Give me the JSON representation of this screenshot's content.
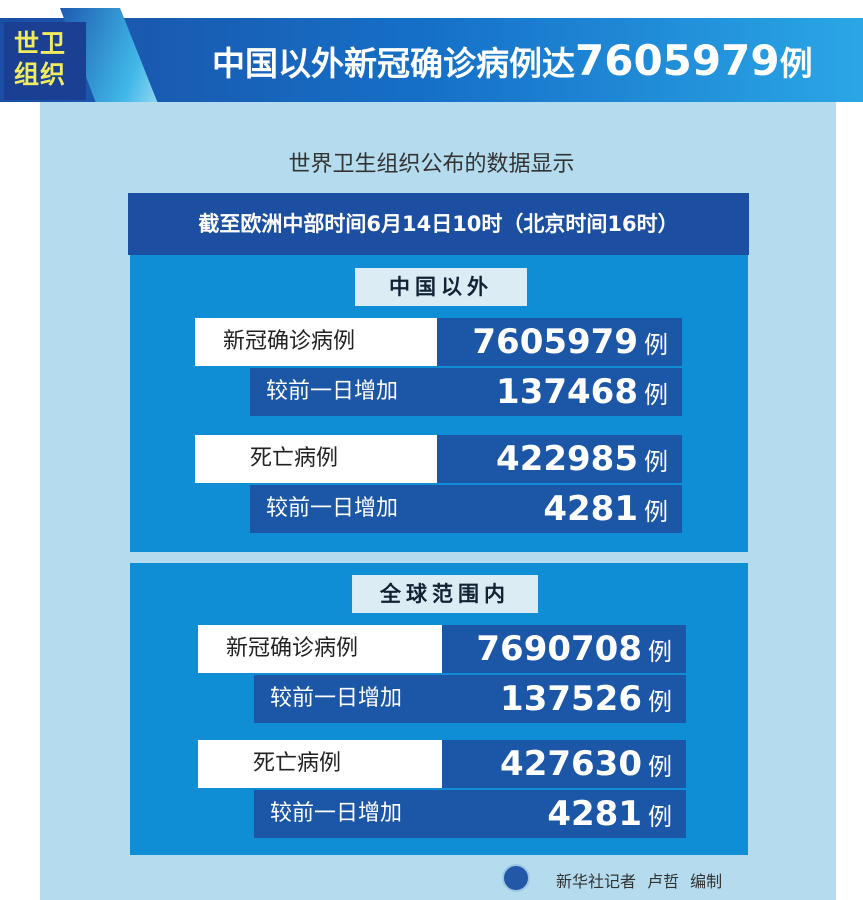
{
  "header": {
    "badge": [
      "世卫",
      "组织"
    ],
    "title_prefix": "中国以外新冠确诊病例达",
    "title_number": "7605979",
    "title_suffix": "例"
  },
  "subtitle": "世界卫生组织公布的数据显示",
  "date_line": "截至欧洲中部时间6月14日10时（北京时间16时）",
  "sections": [
    {
      "title": "中国以外",
      "rows": [
        {
          "label": "新冠确诊病例",
          "value": "7605979",
          "unit": "例"
        },
        {
          "label": "较前一日增加",
          "value": "137468",
          "unit": "例"
        },
        {
          "label": "死亡病例",
          "value": "422985",
          "unit": "例"
        },
        {
          "label": "较前一日增加",
          "value": "4281",
          "unit": "例"
        }
      ]
    },
    {
      "title": "全球范围内",
      "rows": [
        {
          "label": "新冠确诊病例",
          "value": "7690708",
          "unit": "例"
        },
        {
          "label": "较前一日增加",
          "value": "137526",
          "unit": "例"
        },
        {
          "label": "死亡病例",
          "value": "427630",
          "unit": "例"
        },
        {
          "label": "较前一日增加",
          "value": "4281",
          "unit": "例"
        }
      ]
    }
  ],
  "footer": {
    "credit": "新华社记者 卢哲 编制",
    "logo_icon": "xinhua-logo-icon"
  }
}
